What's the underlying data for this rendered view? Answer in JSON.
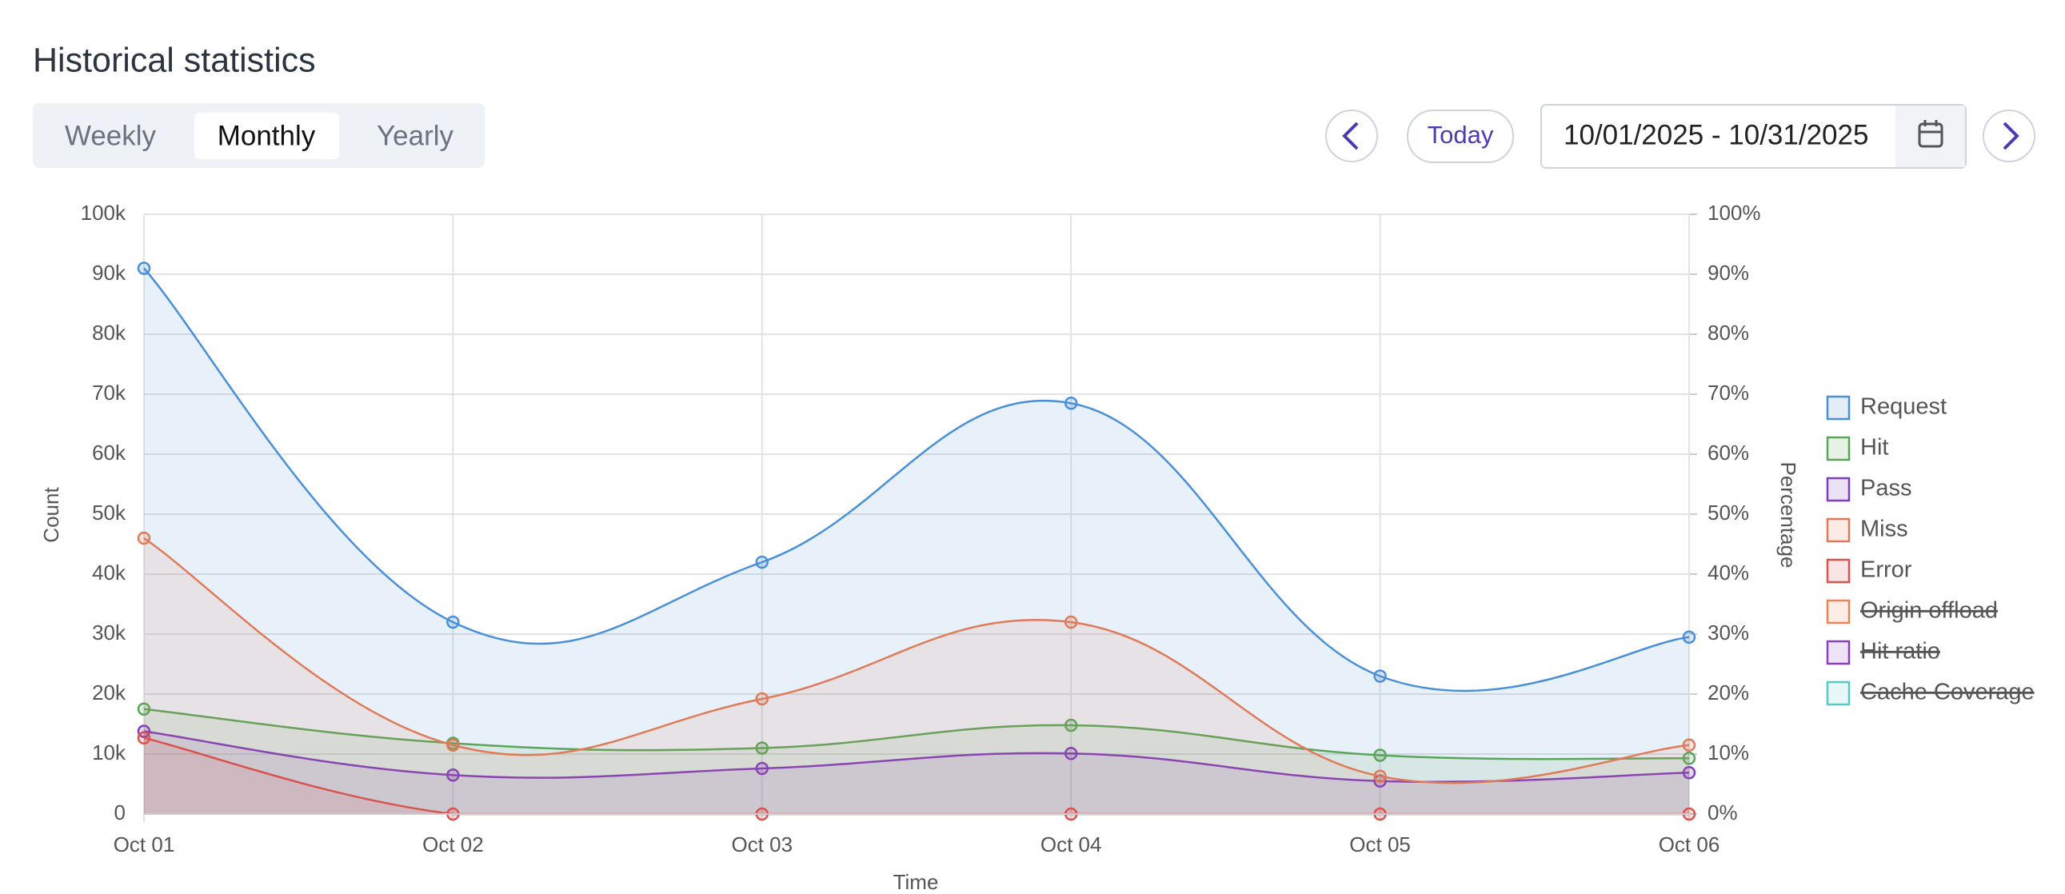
{
  "ui": {
    "title": "Historical statistics",
    "tabs": [
      "Weekly",
      "Monthly",
      "Yearly"
    ],
    "active_tab": 1,
    "today": "Today",
    "date_range": "10/01/2025 - 10/31/2025"
  },
  "chart_data": {
    "type": "area",
    "x_label": "Time",
    "y_label": "Count",
    "y2_label": "Percentage",
    "categories": [
      "Oct 01",
      "Oct 02",
      "Oct 03",
      "Oct 04",
      "Oct 05",
      "Oct 06"
    ],
    "ylim": [
      0,
      100000
    ],
    "yticks": [
      0,
      {
        "value": 10000,
        "label": "10k"
      },
      {
        "value": 20000,
        "label": "20k"
      },
      {
        "value": 30000,
        "label": "30k"
      },
      {
        "value": 40000,
        "label": "40k"
      },
      {
        "value": 50000,
        "label": "50k"
      },
      {
        "value": 60000,
        "label": "60k"
      },
      {
        "value": 70000,
        "label": "70k"
      },
      {
        "value": 80000,
        "label": "80k"
      },
      {
        "value": 90000,
        "label": "90k"
      },
      {
        "value": 100000,
        "label": "100k"
      }
    ],
    "y2lim": [
      0,
      100
    ],
    "y2ticks": [
      {
        "value": 0,
        "label": "0%"
      },
      {
        "value": 10,
        "label": "10%"
      },
      {
        "value": 20,
        "label": "20%"
      },
      {
        "value": 30,
        "label": "30%"
      },
      {
        "value": 40,
        "label": "40%"
      },
      {
        "value": 50,
        "label": "50%"
      },
      {
        "value": 60,
        "label": "60%"
      },
      {
        "value": 70,
        "label": "70%"
      },
      {
        "value": 80,
        "label": "80%"
      },
      {
        "value": 90,
        "label": "90%"
      },
      {
        "value": 100,
        "label": "100%"
      }
    ],
    "grid": true,
    "legend": "right",
    "series": [
      {
        "name": "Request",
        "color": "#4a90d9",
        "values": [
          91000,
          32000,
          42000,
          68500,
          23000,
          29500
        ]
      },
      {
        "name": "Hit",
        "color": "#5aa55a",
        "values": [
          17500,
          11800,
          11000,
          14800,
          9800,
          9300
        ]
      },
      {
        "name": "Pass",
        "color": "#7e3fbf",
        "values": [
          13800,
          6500,
          7600,
          10100,
          5500,
          6900
        ]
      },
      {
        "name": "Miss",
        "color": "#e07b5a",
        "values": [
          46000,
          11500,
          19200,
          32000,
          6300,
          11500
        ]
      },
      {
        "name": "Error",
        "color": "#d9534f",
        "values": [
          12700,
          0,
          0,
          0,
          0,
          0
        ]
      },
      {
        "name": "Origin offload",
        "color": "#e8845a",
        "hidden": true
      },
      {
        "name": "Hit ratio",
        "color": "#8a3fc0",
        "hidden": true
      },
      {
        "name": "Cache Coverage",
        "color": "#5bc8c8",
        "hidden": true
      }
    ]
  }
}
